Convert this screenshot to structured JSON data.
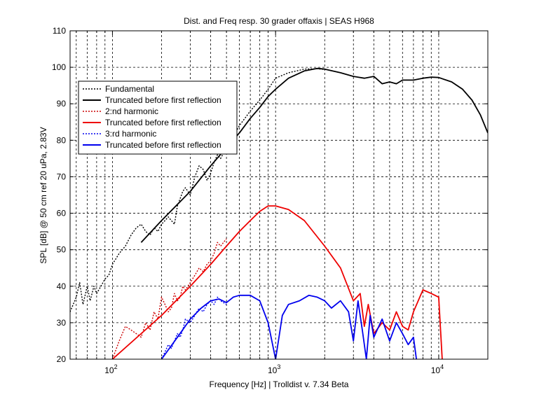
{
  "chart_data": {
    "type": "line",
    "title": "Dist. and Freq resp. 30 grader offaxis | SEAS H968",
    "xlabel": "Frequency [Hz] | Trolldist v. 7.34 Beta",
    "ylabel": "SPL [dB] @ 50 cm ref 20 uPa, 2.83V",
    "xscale": "log",
    "xlim": [
      55,
      20000
    ],
    "ylim": [
      20,
      110
    ],
    "grid": true,
    "legend_position": "top-left",
    "x_tick_labels": [
      {
        "value": 100,
        "base": "10",
        "exp": "2"
      },
      {
        "value": 1000,
        "base": "10",
        "exp": "3"
      },
      {
        "value": 10000,
        "base": "10",
        "exp": "4"
      }
    ],
    "y_ticks": [
      20,
      30,
      40,
      50,
      60,
      70,
      80,
      90,
      100,
      110
    ],
    "series": [
      {
        "name": "Fundamental",
        "color": "#000000",
        "style": "dotted",
        "x": [
          55,
          60,
          63,
          66,
          70,
          73,
          77,
          80,
          85,
          90,
          95,
          100,
          110,
          120,
          130,
          140,
          150,
          160,
          170,
          180,
          190,
          200,
          210,
          220,
          240,
          250,
          260,
          270,
          280,
          300,
          320,
          340,
          360,
          380,
          400,
          420,
          440,
          460,
          500,
          550,
          600,
          700,
          800,
          900,
          1000,
          1200,
          1500,
          1800,
          2000
        ],
        "y": [
          33,
          37,
          41,
          35,
          40,
          36,
          40,
          38,
          40,
          42,
          43,
          46,
          49,
          51,
          54,
          56,
          57,
          55,
          54,
          56,
          55,
          57,
          58,
          59,
          57,
          62,
          64,
          66,
          67,
          65,
          70,
          73,
          72,
          69,
          71,
          74,
          76,
          75,
          78,
          81,
          84,
          88,
          91,
          94,
          97,
          98.5,
          99.5,
          99.6,
          99.4
        ]
      },
      {
        "name": "Truncated before first reflection",
        "color": "#000000",
        "style": "solid",
        "x": [
          150,
          200,
          300,
          400,
          500,
          600,
          700,
          800,
          900,
          1000,
          1200,
          1500,
          1800,
          2000,
          2500,
          3000,
          3500,
          4000,
          4500,
          5000,
          5500,
          6000,
          7000,
          8000,
          9000,
          10000,
          12000,
          14000,
          16000,
          18000,
          20000
        ],
        "y": [
          52,
          58,
          66,
          73,
          78,
          82,
          86,
          89,
          92,
          94,
          97,
          99,
          99.7,
          99.5,
          98.5,
          97.5,
          97,
          97.5,
          95.5,
          96,
          95.5,
          96.5,
          96.5,
          97,
          97.3,
          97.2,
          96,
          94,
          91,
          87,
          82
        ]
      },
      {
        "name": "2:nd harmonic",
        "color": "#cc0000",
        "style": "dotted",
        "x": [
          100,
          110,
          120,
          130,
          140,
          150,
          160,
          170,
          180,
          190,
          200,
          210,
          220,
          230,
          240,
          250,
          260,
          270,
          280,
          300,
          320,
          340,
          360,
          380,
          400,
          420,
          440,
          460,
          500
        ],
        "y": [
          20,
          25,
          29,
          28,
          27,
          26,
          30,
          28,
          33,
          31,
          37,
          35,
          33,
          34,
          38,
          36,
          37,
          40,
          39,
          41,
          43,
          45,
          44,
          46,
          47,
          49,
          52,
          51,
          53
        ]
      },
      {
        "name": "Truncated before first reflection",
        "color": "#ee0000",
        "style": "solid",
        "x": [
          100,
          150,
          200,
          300,
          400,
          500,
          600,
          700,
          800,
          900,
          1000,
          1200,
          1500,
          2000,
          2500,
          3000,
          3300,
          3500,
          3700,
          4000,
          4500,
          5000,
          5500,
          6000,
          6500,
          7000,
          8000,
          9000,
          10000,
          10500
        ],
        "y": [
          20,
          27,
          32,
          40,
          46,
          51,
          55,
          58,
          60.5,
          62,
          62,
          61,
          58,
          51,
          45,
          36,
          38,
          29,
          35,
          27,
          30,
          28,
          33,
          29,
          28,
          33,
          39,
          38,
          37,
          20
        ]
      },
      {
        "name": "3:rd harmonic",
        "color": "#0000ee",
        "style": "dotted",
        "x": [
          200,
          210,
          220,
          230,
          240,
          250,
          260,
          270,
          280,
          300,
          320,
          340,
          360,
          380,
          400,
          420,
          440,
          460,
          500
        ],
        "y": [
          20,
          22,
          24,
          23,
          25,
          27,
          26,
          28,
          31,
          30,
          32,
          34,
          33,
          35,
          36,
          35,
          37,
          36,
          35
        ]
      },
      {
        "name": "Truncated before first reflection",
        "color": "#0000ee",
        "style": "solid",
        "x": [
          200,
          250,
          300,
          350,
          400,
          450,
          500,
          550,
          600,
          700,
          800,
          900,
          1000,
          1100,
          1200,
          1400,
          1600,
          1800,
          2000,
          2200,
          2500,
          2800,
          3000,
          3200,
          3400,
          3600,
          3800,
          4000,
          4500,
          5000,
          5500,
          6000,
          6500,
          7000,
          7300
        ],
        "y": [
          20,
          26,
          31,
          34,
          36,
          36.5,
          35.5,
          37,
          37.5,
          37.5,
          36,
          30,
          20,
          32,
          35,
          36,
          37.5,
          37,
          36,
          34,
          36,
          33,
          25,
          36,
          28,
          20,
          32,
          26,
          31,
          25,
          30,
          27,
          24,
          26,
          20
        ]
      }
    ]
  }
}
